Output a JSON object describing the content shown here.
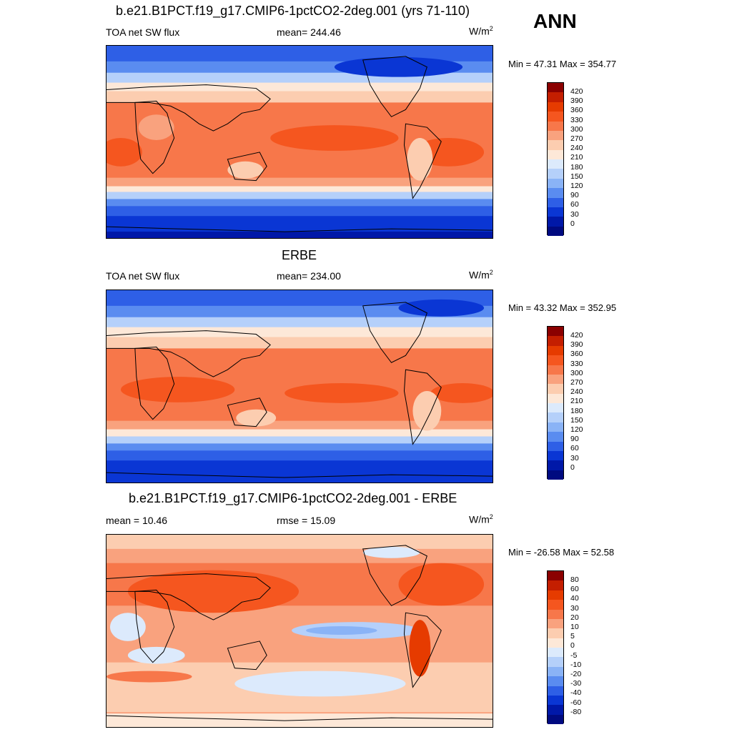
{
  "season": "ANN",
  "panels": [
    {
      "title": "b.e21.B1PCT.f19_g17.CMIP6-1pctCO2-2deg.001 (yrs 71-110)",
      "left_label": "TOA net SW flux",
      "center_label": "mean= 244.46",
      "unit_base": "W/m",
      "unit_exp": "2",
      "minmax": "Min =  47.31 Max = 354.77"
    },
    {
      "title": "ERBE",
      "left_label": "TOA net SW flux",
      "center_label": "mean= 234.00",
      "unit_base": "W/m",
      "unit_exp": "2",
      "minmax": "Min =  43.32 Max = 352.95"
    },
    {
      "title": "b.e21.B1PCT.f19_g17.CMIP6-1pctCO2-2deg.001 - ERBE",
      "left_label": "mean =  10.46",
      "center_label": "rmse =  15.09",
      "unit_base": "W/m",
      "unit_exp": "2",
      "minmax": "Min = -26.58 Max =  52.58"
    }
  ],
  "colorbar_abs": {
    "labels": [
      "420",
      "390",
      "360",
      "330",
      "300",
      "270",
      "240",
      "210",
      "180",
      "150",
      "120",
      "90",
      "60",
      "30",
      "0"
    ],
    "colors": [
      "#8b0000",
      "#c41e00",
      "#e63b00",
      "#f5561f",
      "#f7774a",
      "#f9a27e",
      "#fccdb0",
      "#fde8d8",
      "#dceafc",
      "#b5d0fa",
      "#8ab3f6",
      "#5a8cf0",
      "#2e5fe6",
      "#0a36d4",
      "#0018a8",
      "#000a80"
    ]
  },
  "colorbar_diff": {
    "labels": [
      "80",
      "60",
      "40",
      "30",
      "20",
      "10",
      "5",
      "0",
      "-5",
      "-10",
      "-20",
      "-30",
      "-40",
      "-60",
      "-80"
    ],
    "colors": [
      "#8b0000",
      "#c41e00",
      "#e63b00",
      "#f5561f",
      "#f7774a",
      "#f9a27e",
      "#fccdb0",
      "#fde8d8",
      "#dceafc",
      "#b5d0fa",
      "#8ab3f6",
      "#5a8cf0",
      "#2e5fe6",
      "#0a36d4",
      "#0018a8",
      "#000a80"
    ]
  }
}
